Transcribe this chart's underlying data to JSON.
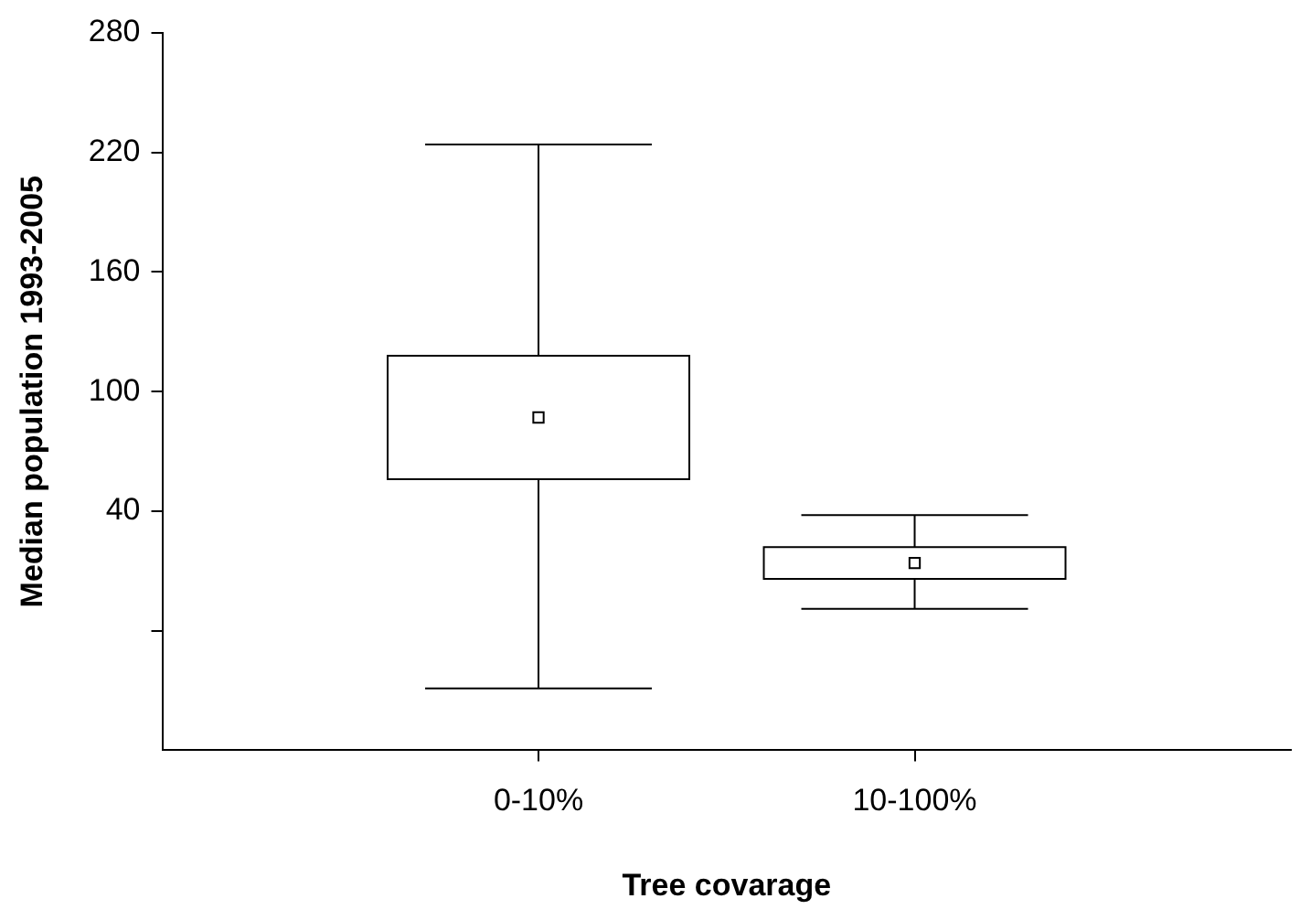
{
  "chart_data": {
    "type": "box",
    "xlabel": "Tree covarage",
    "ylabel": "Median population 1993-2005",
    "categories": [
      "0-10%",
      "10-100%"
    ],
    "boxes": [
      {
        "low": -49,
        "q1": 56,
        "median": 87,
        "q3": 118,
        "high": 224
      },
      {
        "low": -9,
        "q1": 6,
        "median": 14,
        "q3": 22,
        "high": 38
      }
    ],
    "ylim": [
      -80,
      280
    ],
    "yticks": [
      280,
      220,
      160,
      100,
      40,
      {
        "value": -20,
        "label": null
      }
    ],
    "marker": "square",
    "grid": false,
    "legend": false
  }
}
